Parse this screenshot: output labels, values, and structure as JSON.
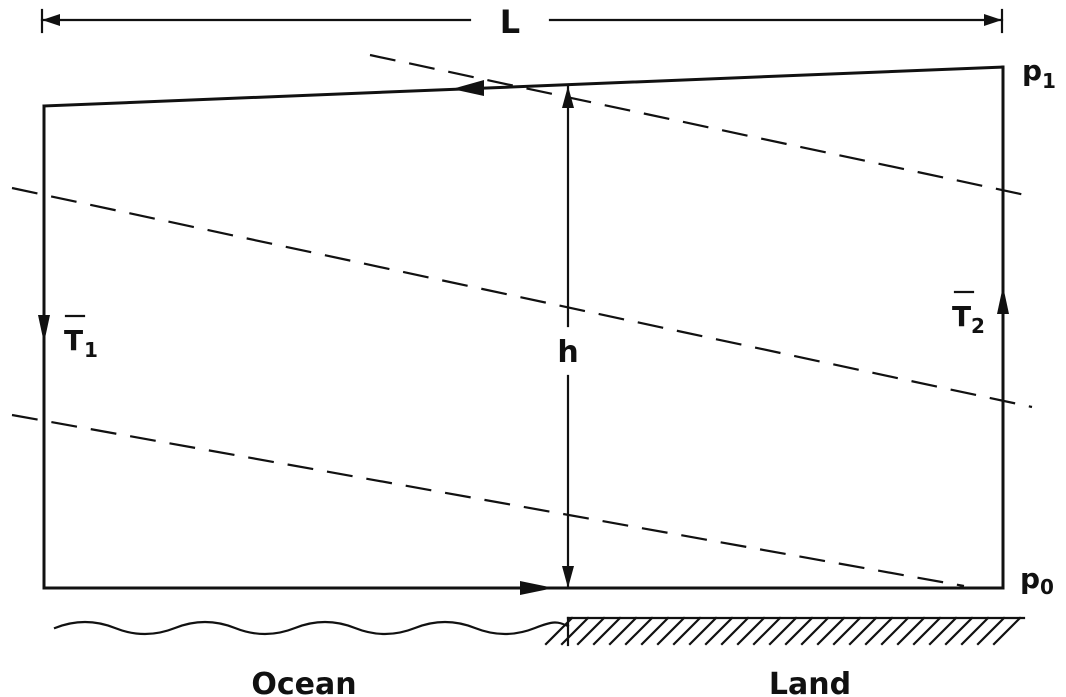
{
  "labels": {
    "length": "L",
    "height": "h",
    "pressure_top": "p",
    "pressure_top_sub": "1",
    "pressure_bottom": "p",
    "pressure_bottom_sub": "0",
    "temp_ocean": "T",
    "temp_ocean_sub": "1",
    "temp_land": "T",
    "temp_land_sub": "2",
    "ocean": "Ocean",
    "land": "Land"
  }
}
